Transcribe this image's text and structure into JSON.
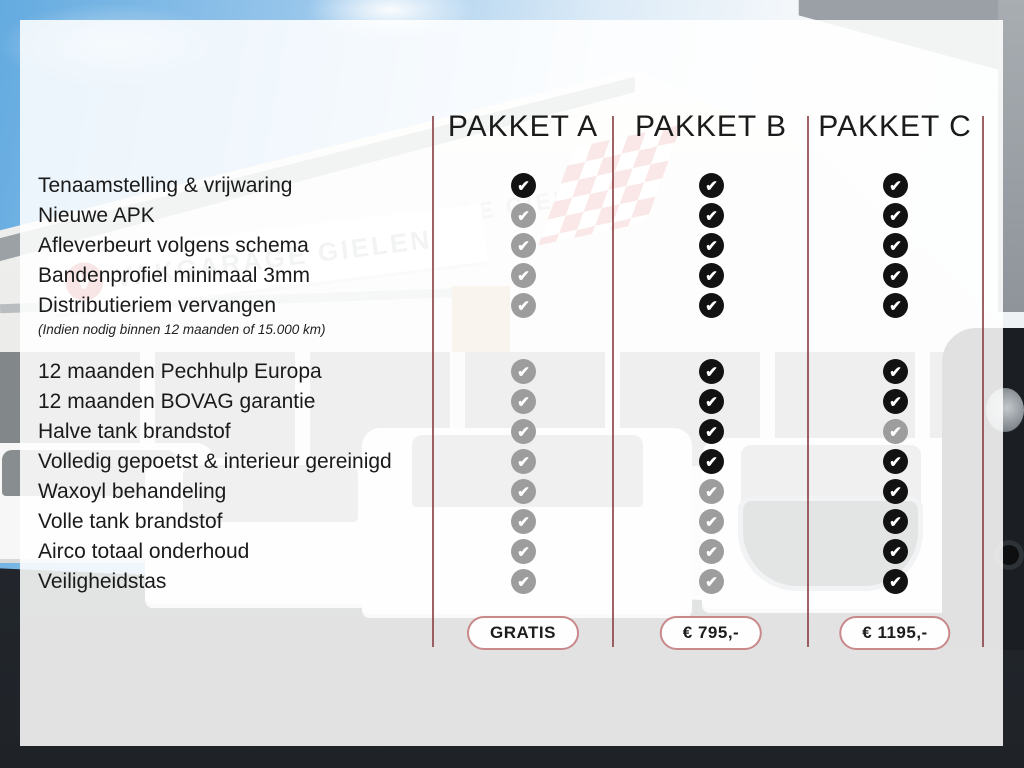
{
  "packages": {
    "columns": [
      {
        "name": "PAKKET A",
        "price": "GRATIS"
      },
      {
        "name": "PAKKET B",
        "price": "€ 795,-"
      },
      {
        "name": "PAKKET C",
        "price": "€ 1195,-"
      }
    ],
    "groups": [
      {
        "rows": [
          {
            "label": "Tenaamstelling & vrijwaring",
            "included": [
              true,
              true,
              true
            ]
          },
          {
            "label": "Nieuwe APK",
            "included": [
              false,
              true,
              true
            ]
          },
          {
            "label": "Afleverbeurt volgens schema",
            "included": [
              false,
              true,
              true
            ]
          },
          {
            "label": "Bandenprofiel minimaal 3mm",
            "included": [
              false,
              true,
              true
            ]
          },
          {
            "label": "Distributieriem vervangen",
            "note": "(Indien nodig binnen 12 maanden of 15.000 km)",
            "included": [
              false,
              true,
              true
            ]
          }
        ]
      },
      {
        "rows": [
          {
            "label": "12 maanden Pechhulp Europa",
            "included": [
              false,
              true,
              true
            ]
          },
          {
            "label": "12 maanden BOVAG garantie",
            "included": [
              false,
              true,
              true
            ]
          },
          {
            "label": "Halve tank brandstof",
            "included": [
              false,
              true,
              false
            ]
          },
          {
            "label": "Volledig gepoetst & interieur gereinigd",
            "included": [
              false,
              true,
              true
            ]
          },
          {
            "label": "Waxoyl behandeling",
            "included": [
              false,
              false,
              true
            ]
          },
          {
            "label": "Volle tank brandstof",
            "included": [
              false,
              false,
              true
            ]
          },
          {
            "label": "Airco totaal onderhoud",
            "included": [
              false,
              false,
              true
            ]
          },
          {
            "label": "Veiligheidstas",
            "included": [
              false,
              false,
              true
            ]
          }
        ]
      }
    ]
  },
  "background": {
    "dealer_sign_roof": "VAKGARAGE GIELEN",
    "dealer_sign_band": "VAKGARAGE GIELEN",
    "logo_letter": "V"
  },
  "icons": {
    "included": "check-circle-black",
    "excluded": "check-circle-gray",
    "check_glyph": "✔"
  },
  "colors": {
    "divider_red": "#8e4649",
    "pill_border_red": "#c9898b",
    "check_included": "#121212",
    "check_excluded": "#9d9d9d",
    "text": "#1a1a1a",
    "brand_red": "#c5373a"
  }
}
